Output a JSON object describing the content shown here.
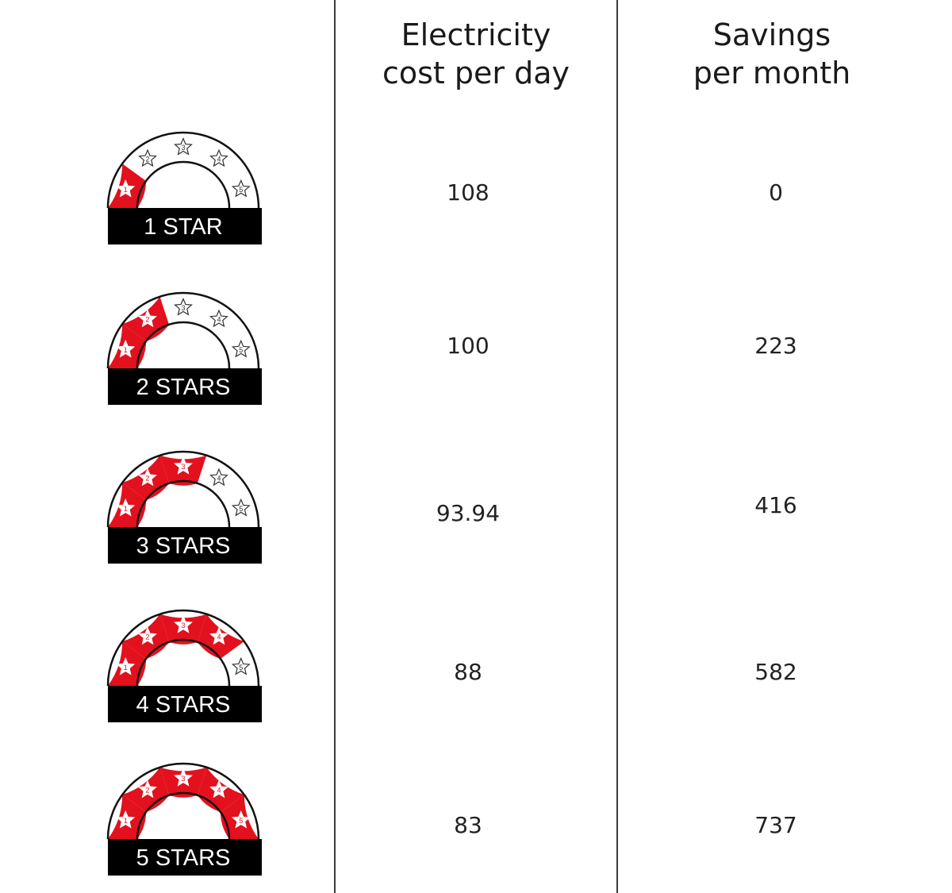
{
  "headers": {
    "cost": "Electricity\ncost per day",
    "savings": "Savings\nper month"
  },
  "colors": {
    "filled": "#e3101d",
    "empty": "#ffffff",
    "label_bg": "#000000"
  },
  "rows": [
    {
      "label": "1 STAR",
      "stars": 1,
      "cost": "108",
      "savings": "0"
    },
    {
      "label": "2 STARS",
      "stars": 2,
      "cost": "100",
      "savings": "223"
    },
    {
      "label": "3 STARS",
      "stars": 3,
      "cost": "93.94",
      "savings": "416"
    },
    {
      "label": "4 STARS",
      "stars": 4,
      "cost": "88",
      "savings": "582"
    },
    {
      "label": "5 STARS",
      "stars": 5,
      "cost": "83",
      "savings": "737"
    }
  ]
}
